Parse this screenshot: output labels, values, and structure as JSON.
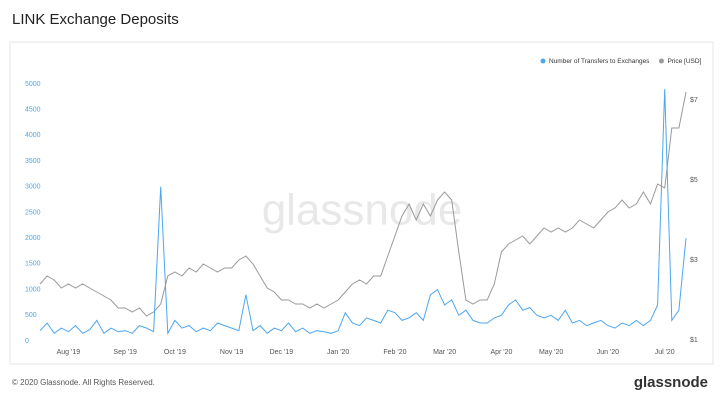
{
  "header": {
    "title": "LINK Exchange Deposits"
  },
  "chart_data": {
    "type": "line",
    "watermark": "glassnode",
    "legend": "top-right",
    "categories": [
      null,
      null,
      null,
      null,
      "Aug '19",
      null,
      null,
      null,
      null,
      null,
      null,
      null,
      "Sep '19",
      null,
      null,
      null,
      null,
      null,
      null,
      "Oct '19",
      null,
      null,
      null,
      null,
      null,
      null,
      null,
      "Nov '19",
      null,
      null,
      null,
      null,
      null,
      null,
      "Dec '19",
      null,
      null,
      null,
      null,
      null,
      null,
      null,
      "Jan '20",
      null,
      null,
      null,
      null,
      null,
      null,
      null,
      "Feb '20",
      null,
      null,
      null,
      null,
      null,
      null,
      "Mar '20",
      null,
      null,
      null,
      null,
      null,
      null,
      null,
      "Apr '20",
      null,
      null,
      null,
      null,
      null,
      null,
      "May '20",
      null,
      null,
      null,
      null,
      null,
      null,
      null,
      "Jun '20",
      null,
      null,
      null,
      null,
      null,
      null,
      null,
      "Jul '20",
      null,
      null,
      null
    ],
    "series": [
      {
        "name": "Number of Transfers to Exchanges",
        "color": "#4da6f0",
        "values": [
          200,
          350,
          150,
          250,
          180,
          300,
          150,
          220,
          400,
          150,
          250,
          180,
          200,
          150,
          300,
          250,
          180,
          3000,
          150,
          400,
          250,
          300,
          180,
          250,
          200,
          350,
          300,
          250,
          200,
          900,
          200,
          300,
          150,
          250,
          200,
          350,
          180,
          250,
          150,
          200,
          180,
          150,
          200,
          550,
          350,
          300,
          450,
          400,
          350,
          600,
          550,
          400,
          450,
          550,
          400,
          900,
          1000,
          700,
          800,
          500,
          600,
          400,
          350,
          350,
          450,
          500,
          700,
          800,
          600,
          650,
          500,
          450,
          500,
          400,
          600,
          350,
          400,
          300,
          350,
          400,
          300,
          250,
          350,
          300,
          400,
          300,
          400,
          700,
          4900,
          400,
          600,
          2000
        ]
      },
      {
        "name": "Price [USD]",
        "color": "#9a9a9a",
        "axis": "y2",
        "values": [
          2.4,
          2.6,
          2.5,
          2.3,
          2.4,
          2.3,
          2.4,
          2.3,
          2.2,
          2.1,
          2.0,
          1.8,
          1.8,
          1.7,
          1.8,
          1.6,
          1.7,
          1.9,
          2.6,
          2.7,
          2.6,
          2.8,
          2.7,
          2.9,
          2.8,
          2.7,
          2.8,
          2.8,
          3.0,
          3.1,
          2.9,
          2.6,
          2.3,
          2.2,
          2.0,
          2.0,
          1.9,
          1.9,
          1.8,
          1.9,
          1.8,
          1.9,
          2.0,
          2.2,
          2.4,
          2.5,
          2.4,
          2.6,
          2.6,
          3.1,
          3.6,
          4.1,
          4.4,
          4.0,
          4.4,
          4.1,
          4.5,
          4.7,
          4.5,
          3.2,
          2.0,
          1.9,
          2.0,
          2.0,
          2.4,
          3.2,
          3.4,
          3.5,
          3.6,
          3.4,
          3.6,
          3.8,
          3.7,
          3.8,
          3.7,
          3.8,
          4.0,
          3.9,
          3.8,
          4.0,
          4.2,
          4.3,
          4.5,
          4.3,
          4.4,
          4.7,
          4.4,
          4.9,
          4.8,
          6.3,
          6.3,
          7.2
        ]
      }
    ],
    "ylim": [
      0,
      5000
    ],
    "yticks": [
      0,
      500,
      1000,
      1500,
      2000,
      2500,
      3000,
      3500,
      4000,
      4500,
      5000
    ],
    "y2lim": [
      0.975,
      7.4
    ],
    "y2ticks": [
      {
        "value": 1,
        "label": "$1"
      },
      {
        "value": 3,
        "label": "$3"
      },
      {
        "value": 5,
        "label": "$5"
      },
      {
        "value": 7,
        "label": "$7"
      }
    ]
  },
  "footer": {
    "copyright": "© 2020 Glassnode. All Rights Reserved.",
    "logo": "glassnode"
  }
}
